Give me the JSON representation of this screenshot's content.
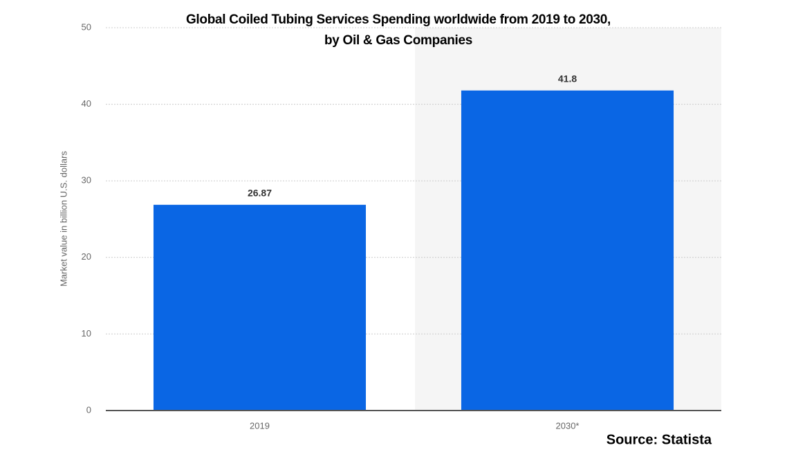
{
  "chart_data": {
    "type": "bar",
    "title": [
      "Global Coiled Tubing Services Spending worldwide from 2019 to 2030,",
      "by Oil & Gas Companies"
    ],
    "y_label": "Market value in billion U.S. dollars",
    "source": "Source: Statista",
    "categories": [
      "2019",
      "2030*"
    ],
    "values": [
      26.87,
      41.8
    ],
    "color": "#0a66e4",
    "ylim": [
      0,
      50
    ],
    "yticks": [
      0,
      10,
      20,
      30,
      40,
      50
    ],
    "grid": true
  }
}
